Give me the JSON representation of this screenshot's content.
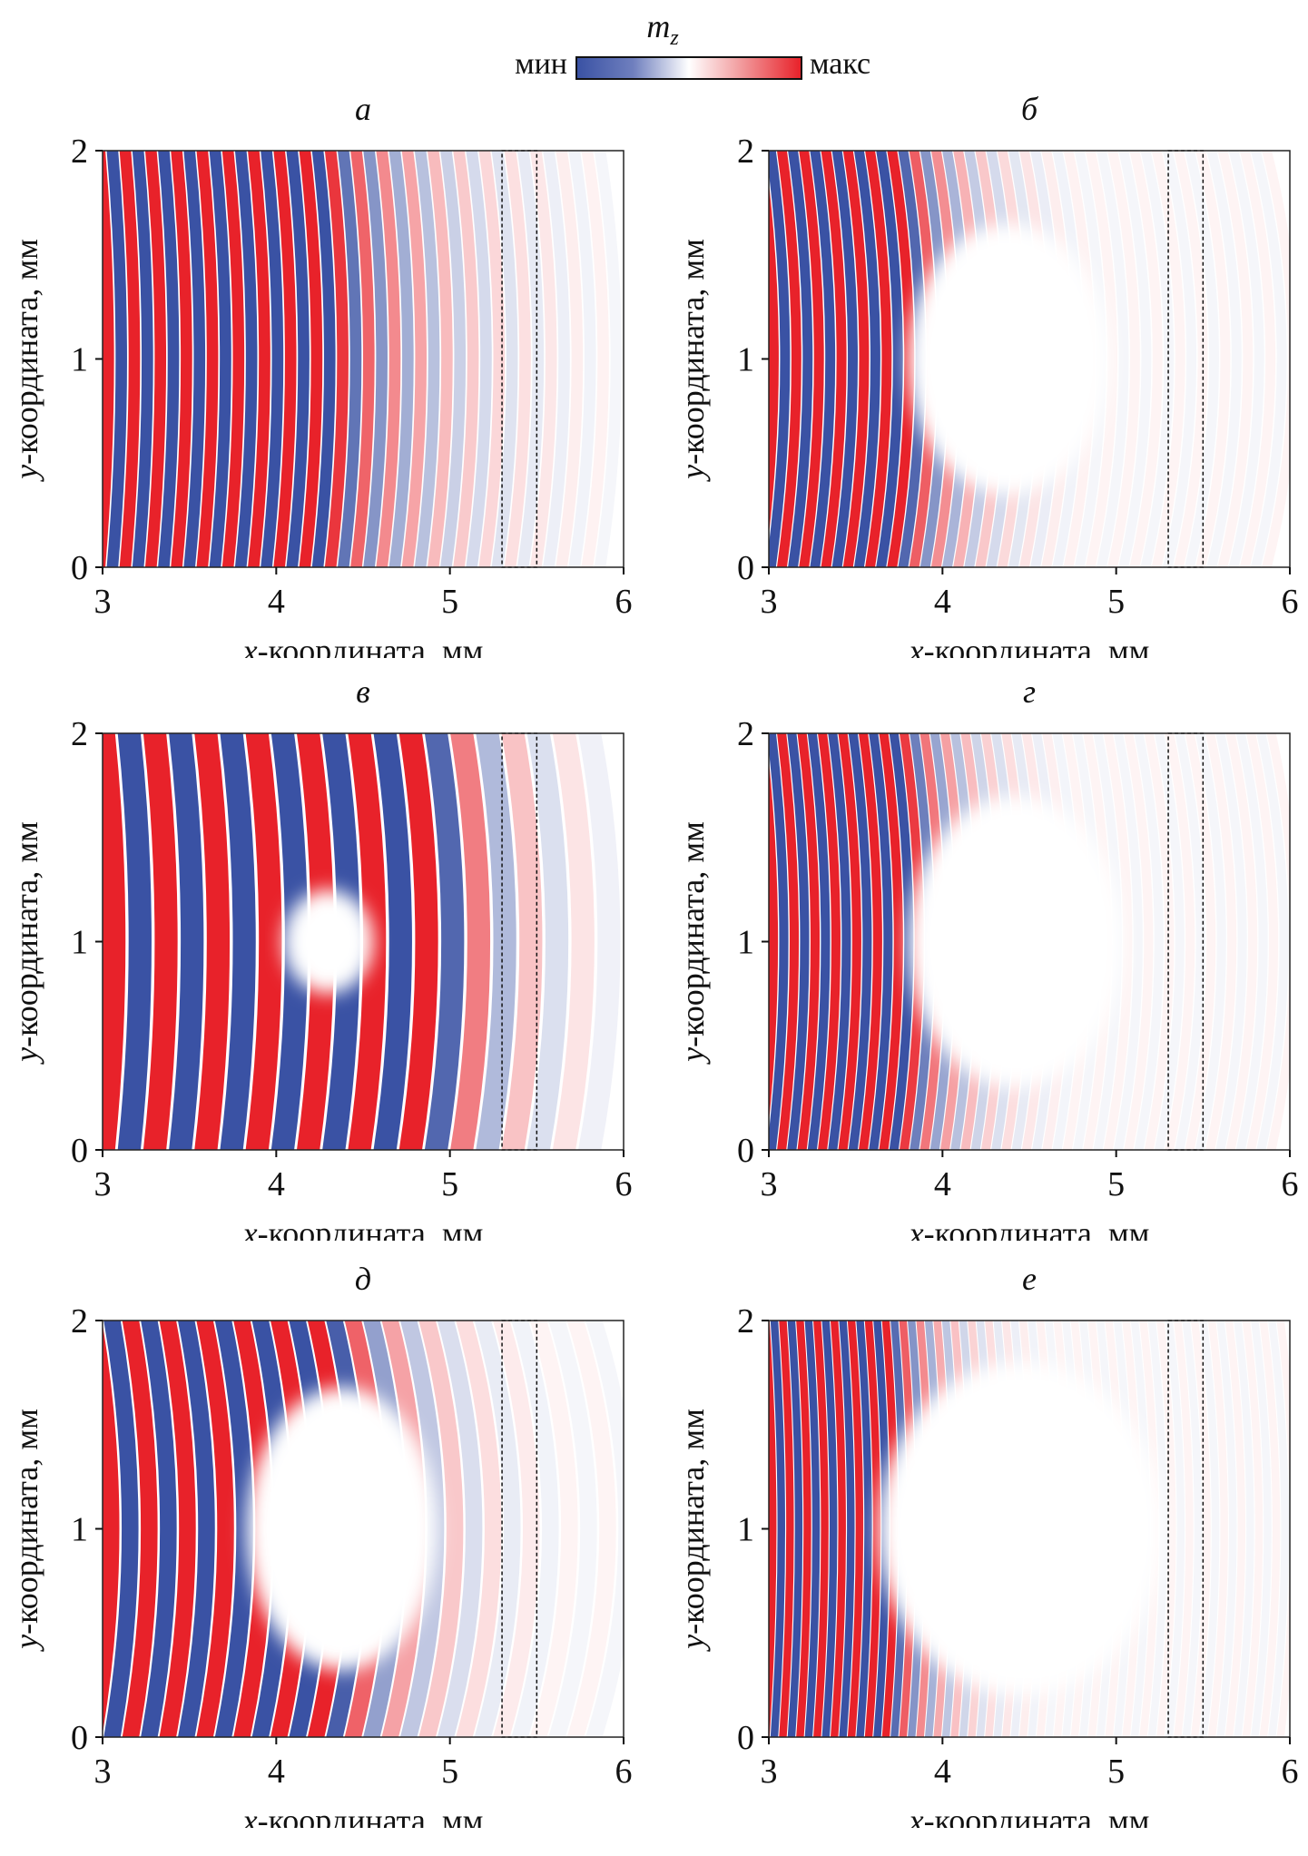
{
  "colorbar": {
    "title": "m_z",
    "title_main": "m",
    "title_sub": "z",
    "min_label": "мин",
    "max_label": "макс",
    "colors": {
      "min": "#3a52a4",
      "mid": "#ffffff",
      "max": "#e8222a"
    }
  },
  "chart_data": {
    "type": "heatmap",
    "xlabel": "x-координата, мм",
    "xlabel_var": "x",
    "xlabel_rest": "-координата, мм",
    "ylabel": "y-координата, мм",
    "ylabel_var": "y",
    "ylabel_rest": "-координата, мм",
    "xlim": [
      3,
      6
    ],
    "ylim": [
      0,
      2
    ],
    "xticks": [
      "3",
      "4",
      "5",
      "6"
    ],
    "yticks": [
      "0",
      "1",
      "2"
    ],
    "dashed_region_x": [
      5.3,
      5.5
    ],
    "panels": [
      {
        "label": "а"
      },
      {
        "label": "б"
      },
      {
        "label": "в"
      },
      {
        "label": "г"
      },
      {
        "label": "д"
      },
      {
        "label": "е"
      }
    ]
  }
}
